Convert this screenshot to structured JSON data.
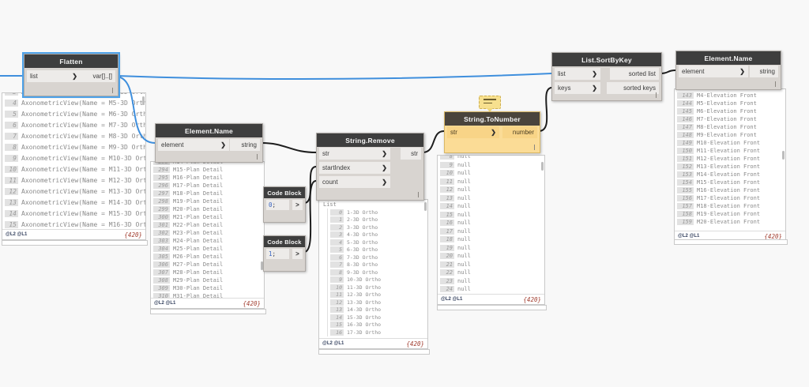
{
  "colors": {
    "canvas_bg": "#f8f8f8",
    "wire_selected": "#3f8fdd",
    "wire": "#1e1e1e",
    "node_header": "#3e3e3e",
    "node_body": "#d8d4d0",
    "port": "#edebe9",
    "selection": "#4da1e8",
    "warning_body": "#fbdc96",
    "warning_header": "#4a443c",
    "count_text": "#a03a2c"
  },
  "nodes": {
    "flatten": {
      "title": "Flatten",
      "inputs": [
        "list"
      ],
      "outputs": [
        "var[]..[]"
      ]
    },
    "element_name_mid": {
      "title": "Element.Name",
      "inputs": [
        "element"
      ],
      "outputs": [
        "string"
      ]
    },
    "string_remove": {
      "title": "String.Remove",
      "inputs": [
        "str",
        "startIndex",
        "count"
      ],
      "outputs": [
        "str"
      ]
    },
    "code_block_top": {
      "title": "Code Block",
      "value": "0",
      "suffix": ";",
      "output_glyph": ">"
    },
    "code_block_bottom": {
      "title": "Code Block",
      "value": "1",
      "suffix": ";",
      "output_glyph": ">"
    },
    "string_to_number": {
      "title": "String.ToNumber",
      "inputs": [
        "str"
      ],
      "outputs": [
        "number"
      ]
    },
    "list_sort_by_key": {
      "title": "List.SortByKey",
      "inputs": [
        "list",
        "keys"
      ],
      "outputs": [
        "sorted list",
        "sorted keys"
      ]
    },
    "element_name_right": {
      "title": "Element.Name",
      "inputs": [
        "element"
      ],
      "outputs": [
        "string"
      ]
    }
  },
  "previews": {
    "flatten": {
      "footer_left": "@L2 @L1",
      "footer_right": "{420}",
      "items": [
        {
          "i": "3",
          "t": "AxonometricView(Name = M4-3D Orth"
        },
        {
          "i": "4",
          "t": "AxonometricView(Name = M5-3D Ortho"
        },
        {
          "i": "5",
          "t": "AxonometricView(Name = M6-3D Ortho"
        },
        {
          "i": "6",
          "t": "AxonometricView(Name = M7-3D Ortho"
        },
        {
          "i": "7",
          "t": "AxonometricView(Name = M8-3D Ortho"
        },
        {
          "i": "8",
          "t": "AxonometricView(Name = M9-3D Ortho"
        },
        {
          "i": "9",
          "t": "AxonometricView(Name = M10-3D Orth"
        },
        {
          "i": "10",
          "t": "AxonometricView(Name = M11-3D Ort"
        },
        {
          "i": "11",
          "t": "AxonometricView(Name = M12-3D Ort"
        },
        {
          "i": "12",
          "t": "AxonometricView(Name = M13-3D Ort"
        },
        {
          "i": "13",
          "t": "AxonometricView(Name = M14-3D Ort"
        },
        {
          "i": "14",
          "t": "AxonometricView(Name = M15-3D Ort"
        },
        {
          "i": "15",
          "t": "AxonometricView(Name = M16-3D Ort"
        }
      ]
    },
    "element_name_mid": {
      "footer_left": "@L2 @L1",
      "footer_right": "{420}",
      "items": [
        {
          "i": "293",
          "t": "M14-Plan Detail"
        },
        {
          "i": "294",
          "t": "M15-Plan Detail"
        },
        {
          "i": "295",
          "t": "M16-Plan Detail"
        },
        {
          "i": "296",
          "t": "M17-Plan Detail"
        },
        {
          "i": "297",
          "t": "M18-Plan Detail"
        },
        {
          "i": "298",
          "t": "M19-Plan Detail"
        },
        {
          "i": "299",
          "t": "M20-Plan Detail"
        },
        {
          "i": "300",
          "t": "M21-Plan Detail"
        },
        {
          "i": "301",
          "t": "M22-Plan Detail"
        },
        {
          "i": "302",
          "t": "M23-Plan Detail"
        },
        {
          "i": "303",
          "t": "M24-Plan Detail"
        },
        {
          "i": "304",
          "t": "M25-Plan Detail"
        },
        {
          "i": "305",
          "t": "M26-Plan Detail"
        },
        {
          "i": "306",
          "t": "M27-Plan Detail"
        },
        {
          "i": "307",
          "t": "M28-Plan Detail"
        },
        {
          "i": "308",
          "t": "M29-Plan Detail"
        },
        {
          "i": "309",
          "t": "M30-Plan Detail"
        },
        {
          "i": "310",
          "t": "M31-Plan Detail"
        }
      ]
    },
    "string_remove": {
      "header": "List",
      "footer_left": "@L2 @L1",
      "footer_right": "{420}",
      "items": [
        {
          "i": "0",
          "t": "1-3D Ortho"
        },
        {
          "i": "1",
          "t": "2-3D Ortho"
        },
        {
          "i": "2",
          "t": "3-3D Ortho"
        },
        {
          "i": "3",
          "t": "4-3D Ortho"
        },
        {
          "i": "4",
          "t": "5-3D Ortho"
        },
        {
          "i": "5",
          "t": "6-3D Ortho"
        },
        {
          "i": "6",
          "t": "7-3D Ortho"
        },
        {
          "i": "7",
          "t": "8-3D Ortho"
        },
        {
          "i": "8",
          "t": "9-3D Ortho"
        },
        {
          "i": "9",
          "t": "10-3D Ortho"
        },
        {
          "i": "10",
          "t": "11-3D Ortho"
        },
        {
          "i": "11",
          "t": "12-3D Ortho"
        },
        {
          "i": "12",
          "t": "13-3D Ortho"
        },
        {
          "i": "13",
          "t": "14-3D Ortho"
        },
        {
          "i": "14",
          "t": "15-3D Ortho"
        },
        {
          "i": "15",
          "t": "16-3D Ortho"
        },
        {
          "i": "16",
          "t": "17-3D Ortho"
        }
      ]
    },
    "string_to_number": {
      "footer_left": "@L2 @L1",
      "footer_right": "{420}",
      "items": [
        {
          "i": "8",
          "t": "null"
        },
        {
          "i": "9",
          "t": "null"
        },
        {
          "i": "10",
          "t": "null"
        },
        {
          "i": "11",
          "t": "null"
        },
        {
          "i": "12",
          "t": "null"
        },
        {
          "i": "13",
          "t": "null"
        },
        {
          "i": "14",
          "t": "null"
        },
        {
          "i": "15",
          "t": "null"
        },
        {
          "i": "16",
          "t": "null"
        },
        {
          "i": "17",
          "t": "null"
        },
        {
          "i": "18",
          "t": "null"
        },
        {
          "i": "19",
          "t": "null"
        },
        {
          "i": "20",
          "t": "null"
        },
        {
          "i": "21",
          "t": "null"
        },
        {
          "i": "22",
          "t": "null"
        },
        {
          "i": "23",
          "t": "null"
        },
        {
          "i": "24",
          "t": "null"
        },
        {
          "i": "25",
          "t": "null"
        }
      ]
    },
    "element_name_right": {
      "footer_left": "@L2 @L1",
      "footer_right": "{420}",
      "items": [
        {
          "i": "143",
          "t": "M4-Elevation Front"
        },
        {
          "i": "144",
          "t": "M5-Elevation Front"
        },
        {
          "i": "145",
          "t": "M6-Elevation Front"
        },
        {
          "i": "146",
          "t": "M7-Elevation Front"
        },
        {
          "i": "147",
          "t": "M8-Elevation Front"
        },
        {
          "i": "148",
          "t": "M9-Elevation Front"
        },
        {
          "i": "149",
          "t": "M10-Elevation Front"
        },
        {
          "i": "150",
          "t": "M11-Elevation Front"
        },
        {
          "i": "151",
          "t": "M12-Elevation Front"
        },
        {
          "i": "152",
          "t": "M13-Elevation Front"
        },
        {
          "i": "153",
          "t": "M14-Elevation Front"
        },
        {
          "i": "154",
          "t": "M15-Elevation Front"
        },
        {
          "i": "155",
          "t": "M16-Elevation Front"
        },
        {
          "i": "156",
          "t": "M17-Elevation Front"
        },
        {
          "i": "157",
          "t": "M18-Elevation Front"
        },
        {
          "i": "158",
          "t": "M19-Elevation Front"
        },
        {
          "i": "159",
          "t": "M20-Elevation Front"
        }
      ]
    }
  }
}
